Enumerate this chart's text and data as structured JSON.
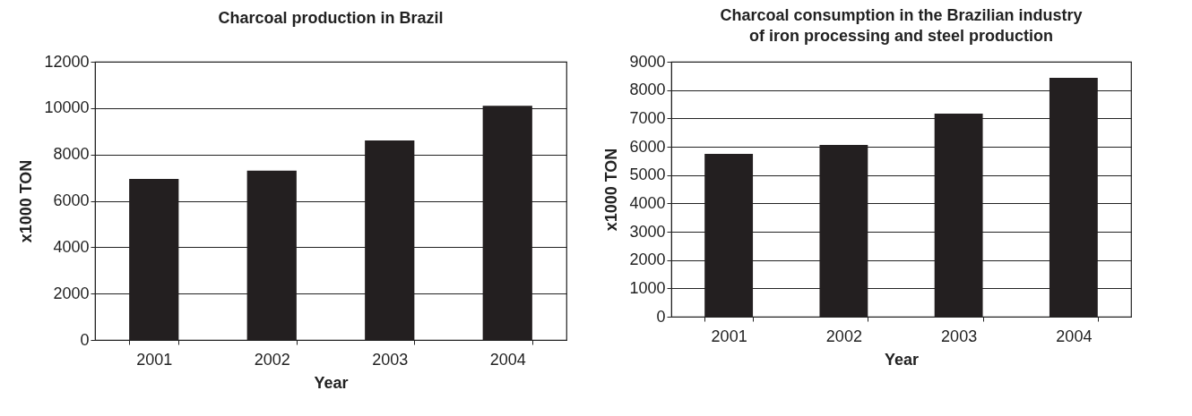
{
  "chart_data": [
    {
      "type": "bar",
      "title": "Charcoal production in Brazil",
      "xlabel": "Year",
      "ylabel": "x1000 TON",
      "categories": [
        "2001",
        "2002",
        "2003",
        "2004"
      ],
      "values": [
        6950,
        7300,
        8600,
        10100
      ],
      "color": "#231f20",
      "ylim": [
        0,
        12000
      ],
      "yticks": [
        0,
        2000,
        4000,
        6000,
        8000,
        10000,
        12000
      ],
      "grid": "y"
    },
    {
      "type": "bar",
      "title": "Charcoal consumption  in the Brazilian industry\nof iron processing and steel production",
      "xlabel": "Year",
      "ylabel": "x1000 TON",
      "categories": [
        "2001",
        "2002",
        "2003",
        "2004"
      ],
      "values": [
        5750,
        6060,
        7170,
        8430
      ],
      "color": "#231f20",
      "ylim": [
        0,
        9000
      ],
      "yticks": [
        0,
        1000,
        2000,
        3000,
        4000,
        5000,
        6000,
        7000,
        8000,
        9000
      ],
      "grid": "y"
    }
  ]
}
